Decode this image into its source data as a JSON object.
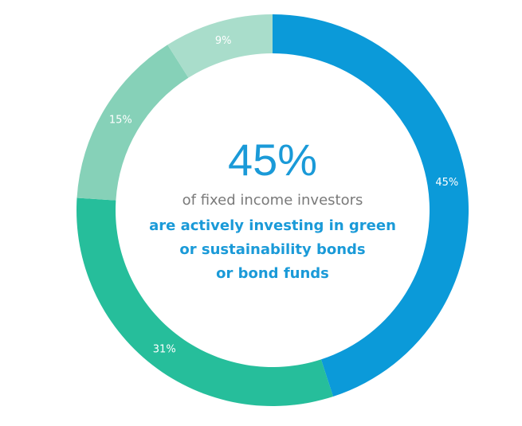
{
  "chart_data": {
    "type": "pie",
    "donut": true,
    "values": [
      45,
      31,
      15,
      9
    ],
    "value_labels": [
      "45%",
      "31%",
      "15%",
      "9%"
    ],
    "colors": [
      "#0b9ad9",
      "#26be9b",
      "#86d1b8",
      "#a9ddcb"
    ],
    "center_value": "45%",
    "center_lines": [
      "of fixed income investors",
      "are actively investing in green",
      "or sustainability bonds",
      "or bond funds"
    ]
  }
}
